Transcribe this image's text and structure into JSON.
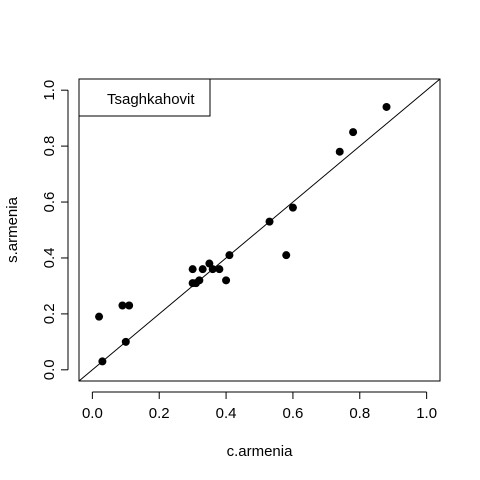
{
  "chart_data": {
    "type": "scatter",
    "title": "",
    "xlabel": "c.armenia",
    "ylabel": "s.armenia",
    "xlim": [
      -0.04,
      1.04
    ],
    "ylim": [
      -0.04,
      1.04
    ],
    "x_ticks": [
      0.0,
      0.2,
      0.4,
      0.6,
      0.8,
      1.0
    ],
    "x_tick_labels": [
      "0.0",
      "0.2",
      "0.4",
      "0.6",
      "0.8",
      "1.0"
    ],
    "y_ticks": [
      0.0,
      0.2,
      0.4,
      0.6,
      0.8,
      1.0
    ],
    "y_tick_labels": [
      "0.0",
      "0.2",
      "0.4",
      "0.6",
      "0.8",
      "1.0"
    ],
    "grid": false,
    "legend": {
      "label": "Tsaghkahovit",
      "placement": "top-left"
    },
    "reference_line": {
      "type": "identity",
      "slope": 1,
      "intercept": 0
    },
    "marker_color": "#000000",
    "series": [
      {
        "points": [
          {
            "x": 0.02,
            "y": 0.19
          },
          {
            "x": 0.03,
            "y": 0.03
          },
          {
            "x": 0.09,
            "y": 0.23
          },
          {
            "x": 0.11,
            "y": 0.23
          },
          {
            "x": 0.1,
            "y": 0.1
          },
          {
            "x": 0.3,
            "y": 0.36
          },
          {
            "x": 0.3,
            "y": 0.31
          },
          {
            "x": 0.31,
            "y": 0.31
          },
          {
            "x": 0.32,
            "y": 0.32
          },
          {
            "x": 0.33,
            "y": 0.36
          },
          {
            "x": 0.35,
            "y": 0.38
          },
          {
            "x": 0.36,
            "y": 0.36
          },
          {
            "x": 0.38,
            "y": 0.36
          },
          {
            "x": 0.4,
            "y": 0.32
          },
          {
            "x": 0.41,
            "y": 0.41
          },
          {
            "x": 0.53,
            "y": 0.53
          },
          {
            "x": 0.58,
            "y": 0.41
          },
          {
            "x": 0.6,
            "y": 0.58
          },
          {
            "x": 0.74,
            "y": 0.78
          },
          {
            "x": 0.78,
            "y": 0.85
          },
          {
            "x": 0.88,
            "y": 0.94
          }
        ]
      }
    ]
  }
}
